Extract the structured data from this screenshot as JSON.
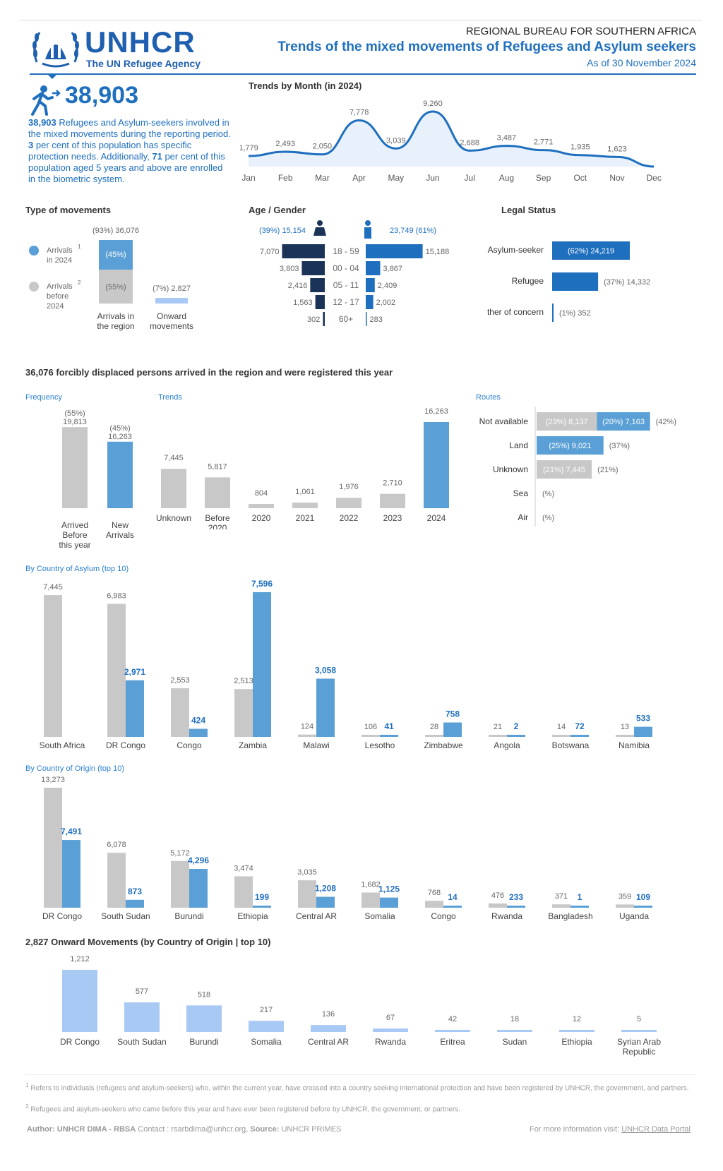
{
  "header": {
    "org": "UNHCR",
    "org_sub": "The UN Refugee Agency",
    "bureau": "REGIONAL BUREAU FOR SOUTHERN AFRICA",
    "title": "Trends of the mixed movements of Refugees and Asylum seekers",
    "date": "As of 30 November 2024"
  },
  "kpi": {
    "value": "38,903",
    "desc_bold1": "38,903",
    "desc1": " Refugees and Asylum-seekers involved in the mixed movements during the reporting period. ",
    "desc_bold2": "3",
    "desc2": " per cent of this population has specific protection needs. Additionally, ",
    "desc_bold3": "71",
    "desc3": " per cent of this population aged 5 years and above are enrolled in the biometric system."
  },
  "colors": {
    "blue": "#1f6fbf",
    "mid": "#5aa0d6",
    "grey": "#c8c8c8",
    "navy": "#1c3358",
    "light": "#a9c9f5"
  },
  "sections": {
    "monthly": "Trends by Month (in 2024)",
    "movements": "Type of movements",
    "age": "Age / Gender",
    "legal": "Legal Status",
    "arrived": "36,076 forcibly displaced persons arrived in the region and were registered this year",
    "frequency": "Frequency",
    "trends": "Trends",
    "routes": "Routes",
    "asylum": "By Country of Asylum (top 10)",
    "origin": "By Country of Origin (top 10)",
    "onward": "2,827 Onward Movements (by Country of Origin | top 10)"
  },
  "chart_data": [
    {
      "type": "area",
      "title": "Trends by Month (in 2024)",
      "x": [
        "Jan",
        "Feb",
        "Mar",
        "Apr",
        "May",
        "Jun",
        "Jul",
        "Aug",
        "Sep",
        "Oct",
        "Nov",
        "Dec"
      ],
      "values": [
        1779,
        2493,
        2050,
        7778,
        3039,
        9260,
        2688,
        3487,
        2771,
        1935,
        1623,
        0
      ],
      "labels": [
        "1,779",
        "2,493",
        "2,050",
        "7,778",
        "3,039",
        "9,260",
        "2,688",
        "3,487",
        "2,771",
        "1,935",
        "1,623",
        ""
      ]
    },
    {
      "type": "bar",
      "title": "Type of movements",
      "legend": [
        {
          "name": "Arrivals",
          "sup": "1",
          "sub": "in 2024"
        },
        {
          "name": "Arrivals",
          "sup": "2",
          "sub": "before 2024"
        }
      ],
      "categories": [
        "Arrivals in the region",
        "Onward movements"
      ],
      "arrivals": {
        "total_label": "(93%) 36,076",
        "new_pct": "(45%)",
        "before_pct": "(55%)"
      },
      "onward": {
        "label": "(7%) 2,827"
      }
    },
    {
      "type": "bar",
      "title": "Age / Gender",
      "female_total": "(39%) 15,154",
      "male_total": "23,749 (61%)",
      "categories": [
        "18 - 59",
        "00 - 04",
        "05 - 11",
        "12 - 17",
        "60+"
      ],
      "female": [
        7070,
        3803,
        2416,
        1563,
        302
      ],
      "male": [
        15188,
        3867,
        2409,
        2002,
        283
      ],
      "female_labels": [
        "7,070",
        "3,803",
        "2,416",
        "1,563",
        "302"
      ],
      "male_labels": [
        "15,188",
        "3,867",
        "2,409",
        "2,002",
        "283"
      ]
    },
    {
      "type": "bar",
      "title": "Legal Status",
      "categories": [
        "Asylum-seeker",
        "Refugee",
        "Other of concern"
      ],
      "values": [
        24219,
        14332,
        352
      ],
      "labels": [
        "(62%) 24,219",
        "(37%) 14,332",
        "(1%) 352"
      ]
    },
    {
      "type": "bar",
      "title": "Frequency",
      "categories": [
        "Arrived Before this year",
        "New Arrivals"
      ],
      "values": [
        19813,
        16263
      ],
      "pct": [
        "(55%)",
        "(45%)"
      ],
      "labels": [
        "19,813",
        "16,263"
      ]
    },
    {
      "type": "bar",
      "title": "Trends",
      "categories": [
        "Unknown",
        "Before 2020",
        "2020",
        "2021",
        "2022",
        "2023",
        "2024"
      ],
      "values": [
        7445,
        5817,
        804,
        1061,
        1976,
        2710,
        16263
      ],
      "labels": [
        "7,445",
        "5,817",
        "804",
        "1,061",
        "1,976",
        "2,710",
        "16,263"
      ]
    },
    {
      "type": "bar",
      "title": "Routes",
      "categories": [
        "Not available",
        "Land",
        "Unknown",
        "Sea",
        "Air"
      ],
      "before": [
        8137,
        0,
        7445,
        0,
        0
      ],
      "new": [
        7163,
        9021,
        0,
        0,
        0
      ],
      "before_labels": [
        "(23%) 8,137",
        "",
        "(21%) 7,445",
        "",
        ""
      ],
      "new_labels": [
        "(20%) 7,163",
        "(25%) 9,021",
        "",
        "",
        ""
      ],
      "totals": [
        "(42%)",
        "(37%)",
        "(21%)",
        "(%)",
        "(%)"
      ]
    },
    {
      "type": "bar",
      "title": "By Country of Asylum (top 10)",
      "categories": [
        "South Africa",
        "DR Congo",
        "Congo",
        "Zambia",
        "Malawi",
        "Lesotho",
        "Zimbabwe",
        "Angola",
        "Botswana",
        "Namibia"
      ],
      "series": [
        {
          "values": [
            7445,
            6983,
            2553,
            2513,
            124,
            106,
            28,
            21,
            14,
            13
          ],
          "labels": [
            "7,445",
            "6,983",
            "2,553",
            "2,513",
            "124",
            "106",
            "28",
            "21",
            "14",
            "13"
          ]
        },
        {
          "values": [
            0,
            2971,
            424,
            7596,
            3058,
            41,
            758,
            2,
            72,
            533
          ],
          "labels": [
            "",
            "2,971",
            "424",
            "7,596",
            "3,058",
            "41",
            "758",
            "2",
            "72",
            "533"
          ]
        }
      ]
    },
    {
      "type": "bar",
      "title": "By Country of Origin (top 10)",
      "categories": [
        "DR Congo",
        "South Sudan",
        "Burundi",
        "Ethiopia",
        "Central AR",
        "Somalia",
        "Congo",
        "Rwanda",
        "Bangladesh",
        "Uganda"
      ],
      "series": [
        {
          "values": [
            13273,
            6078,
            5172,
            3474,
            3035,
            1682,
            768,
            476,
            371,
            359
          ],
          "labels": [
            "13,273",
            "6,078",
            "5,172",
            "3,474",
            "3,035",
            "1,682",
            "768",
            "476",
            "371",
            "359"
          ]
        },
        {
          "values": [
            7491,
            873,
            4296,
            199,
            1208,
            1125,
            14,
            233,
            1,
            109
          ],
          "labels": [
            "7,491",
            "873",
            "4,296",
            "199",
            "1,208",
            "1,125",
            "14",
            "233",
            "1",
            "109"
          ]
        }
      ]
    },
    {
      "type": "bar",
      "title": "2,827 Onward Movements (by Country of Origin | top 10)",
      "categories": [
        "DR Congo",
        "South Sudan",
        "Burundi",
        "Somalia",
        "Central AR",
        "Rwanda",
        "Eritrea",
        "Sudan",
        "Ethiopia",
        "Syrian Arab Republic"
      ],
      "values": [
        1212,
        577,
        518,
        217,
        136,
        67,
        42,
        18,
        12,
        5
      ],
      "labels": [
        "1,212",
        "577",
        "518",
        "217",
        "136",
        "67",
        "42",
        "18",
        "12",
        "5"
      ]
    }
  ],
  "footnotes": {
    "f1": "Refers to individuals (refugees and asylum-seekers) who, within the current year, have crossed into a country seeking international protection and have been registered by UNHCR, the government, and partners.",
    "f2": "Refugees and asylum-seekers who came before this year and have ever been registered before by UNHCR, the government, or partners.",
    "author_label": "Author:",
    "author": "UNHCR DIMA - RBSA",
    "contact": "Contact : rsarbdima@unhcr.org,",
    "source_label": "Source:",
    "source": "UNHCR PRIMES",
    "more": "For more information visit:",
    "portal": "UNHCR Data Portal"
  }
}
